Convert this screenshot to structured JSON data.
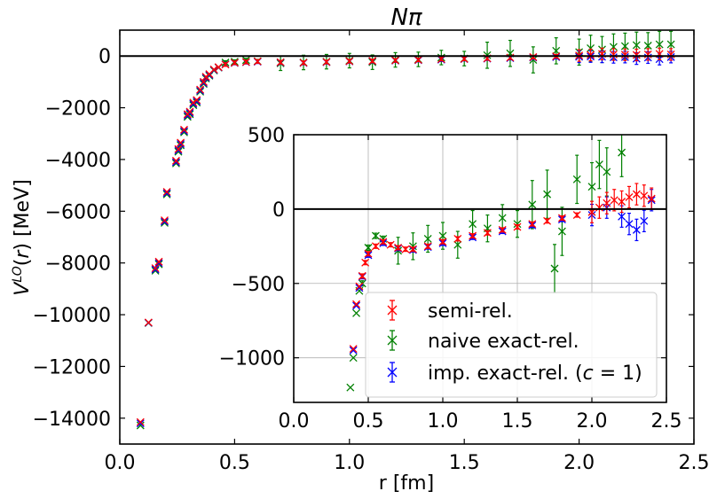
{
  "chart_data": [
    {
      "id": "main",
      "type": "scatter",
      "title": "Nπ",
      "xlabel": "r [fm]",
      "ylabel": "V^LO(r) [MeV]",
      "xlim": [
        0.0,
        2.5
      ],
      "ylim": [
        -15000,
        1000
      ],
      "xticks": [
        0.0,
        0.5,
        1.0,
        1.5,
        2.0,
        2.5
      ],
      "xtick_labels": [
        "0.0",
        "0.5",
        "1.0",
        "1.5",
        "2.0",
        "2.5"
      ],
      "yticks": [
        0,
        -2000,
        -4000,
        -6000,
        -8000,
        -10000,
        -12000,
        -14000
      ],
      "ytick_labels": [
        "0",
        "−2000",
        "−4000",
        "−6000",
        "−8000",
        "−10000",
        "−12000",
        "−14000"
      ],
      "grid": false,
      "zero_line": true,
      "series": [
        {
          "name": "semi-rel.",
          "color": "#ff0000",
          "marker": "x",
          "points": [
            [
              0.09,
              -14150
            ],
            [
              0.125,
              -10300
            ],
            [
              0.155,
              -8200
            ],
            [
              0.17,
              -7950
            ],
            [
              0.195,
              -6350
            ],
            [
              0.205,
              -5250
            ],
            [
              0.245,
              -4050
            ],
            [
              0.255,
              -3600
            ],
            [
              0.265,
              -3350
            ],
            [
              0.28,
              -2850
            ],
            [
              0.295,
              -2250
            ],
            [
              0.305,
              -2150
            ],
            [
              0.32,
              -1800
            ],
            [
              0.335,
              -1700
            ],
            [
              0.35,
              -1300
            ],
            [
              0.365,
              -1000
            ],
            [
              0.375,
              -800
            ],
            [
              0.39,
              -700
            ],
            [
              0.41,
              -520
            ],
            [
              0.43,
              -430
            ],
            [
              0.46,
              -330
            ],
            [
              0.5,
              -260
            ],
            [
              0.55,
              -230
            ],
            [
              0.6,
              -210
            ],
            [
              0.7,
              -240
            ],
            [
              0.8,
              -260
            ],
            [
              0.9,
              -230
            ],
            [
              1.0,
              -200
            ],
            [
              1.1,
              -190
            ],
            [
              1.2,
              -170
            ],
            [
              1.3,
              -150
            ],
            [
              1.4,
              -120
            ],
            [
              1.5,
              -110
            ],
            [
              1.6,
              -90
            ],
            [
              1.7,
              -60
            ],
            [
              1.8,
              -40
            ],
            [
              1.9,
              -10
            ],
            [
              2.0,
              20
            ],
            [
              2.05,
              40
            ],
            [
              2.1,
              80
            ],
            [
              2.15,
              60
            ],
            [
              2.2,
              50
            ],
            [
              2.25,
              40
            ],
            [
              2.3,
              60
            ],
            [
              2.35,
              80
            ],
            [
              2.4,
              60
            ]
          ]
        },
        {
          "name": "naive exact-rel.",
          "color": "#008000",
          "marker": "x",
          "points": [
            [
              0.09,
              -14280
            ],
            [
              0.125,
              -10320
            ],
            [
              0.155,
              -8300
            ],
            [
              0.17,
              -8050
            ],
            [
              0.195,
              -6450
            ],
            [
              0.205,
              -5350
            ],
            [
              0.245,
              -4150
            ],
            [
              0.255,
              -3700
            ],
            [
              0.265,
              -3450
            ],
            [
              0.28,
              -2950
            ],
            [
              0.295,
              -2350
            ],
            [
              0.305,
              -2250
            ],
            [
              0.32,
              -1900
            ],
            [
              0.335,
              -1800
            ],
            [
              0.35,
              -1380
            ],
            [
              0.365,
              -1080
            ],
            [
              0.375,
              -870
            ],
            [
              0.39,
              -760
            ],
            [
              0.41,
              -560
            ],
            [
              0.43,
              -450
            ],
            [
              0.46,
              -250
            ],
            [
              0.5,
              -220
            ],
            [
              0.55,
              -160
            ],
            [
              0.6,
              -200
            ],
            [
              0.7,
              -280
            ],
            [
              0.8,
              -250
            ],
            [
              0.9,
              -220
            ],
            [
              1.0,
              -180
            ],
            [
              1.1,
              -240
            ],
            [
              1.2,
              -150
            ],
            [
              1.3,
              -130
            ],
            [
              1.4,
              -60
            ],
            [
              1.5,
              -100
            ],
            [
              1.6,
              30
            ],
            [
              1.7,
              100
            ],
            [
              1.8,
              -150
            ],
            [
              1.9,
              200
            ],
            [
              2.0,
              150
            ],
            [
              2.05,
              300
            ],
            [
              2.1,
              250
            ],
            [
              2.15,
              350
            ],
            [
              2.2,
              380
            ],
            [
              2.25,
              420
            ],
            [
              2.3,
              400
            ],
            [
              2.35,
              450
            ],
            [
              2.4,
              450
            ]
          ]
        },
        {
          "name": "imp. exact-rel. (c = 1)",
          "color": "#0000ff",
          "marker": "x",
          "points": [
            [
              0.09,
              -14200
            ],
            [
              0.125,
              -10310
            ],
            [
              0.155,
              -8250
            ],
            [
              0.17,
              -8000
            ],
            [
              0.195,
              -6400
            ],
            [
              0.205,
              -5300
            ],
            [
              0.245,
              -4100
            ],
            [
              0.255,
              -3650
            ],
            [
              0.265,
              -3400
            ],
            [
              0.28,
              -2900
            ],
            [
              0.295,
              -2300
            ],
            [
              0.305,
              -2200
            ],
            [
              0.32,
              -1850
            ],
            [
              0.335,
              -1750
            ],
            [
              0.35,
              -1340
            ],
            [
              0.365,
              -1040
            ],
            [
              0.375,
              -830
            ],
            [
              0.39,
              -730
            ],
            [
              0.41,
              -540
            ],
            [
              0.43,
              -440
            ],
            [
              0.46,
              -320
            ],
            [
              0.5,
              -270
            ],
            [
              0.55,
              -240
            ],
            [
              0.6,
              -220
            ],
            [
              0.7,
              -250
            ],
            [
              0.8,
              -270
            ],
            [
              0.9,
              -240
            ],
            [
              1.0,
              -210
            ],
            [
              1.1,
              -200
            ],
            [
              1.2,
              -180
            ],
            [
              1.3,
              -160
            ],
            [
              1.4,
              -140
            ],
            [
              1.5,
              -120
            ],
            [
              1.6,
              -100
            ],
            [
              1.7,
              -80
            ],
            [
              1.8,
              -60
            ],
            [
              1.9,
              -40
            ],
            [
              2.0,
              -30
            ],
            [
              2.05,
              -20
            ],
            [
              2.1,
              -30
            ],
            [
              2.15,
              -50
            ],
            [
              2.2,
              -40
            ],
            [
              2.25,
              -100
            ],
            [
              2.3,
              -60
            ],
            [
              2.35,
              -120
            ],
            [
              2.4,
              -40
            ]
          ]
        }
      ]
    },
    {
      "id": "inset",
      "type": "scatter",
      "xlim": [
        0.0,
        2.5
      ],
      "ylim": [
        -1300,
        500
      ],
      "xticks": [
        0.0,
        0.5,
        1.0,
        1.5,
        2.0,
        2.5
      ],
      "xtick_labels": [
        "0.0",
        "0.5",
        "1.0",
        "1.5",
        "2.0",
        "2.5"
      ],
      "yticks": [
        500,
        0,
        -500,
        -1000
      ],
      "ytick_labels": [
        "500",
        "0",
        "−500",
        "−1000"
      ],
      "grid": true,
      "zero_line": true,
      "legend_position": "lower-right",
      "legend": [
        {
          "label": "semi-rel.",
          "color": "#ff0000"
        },
        {
          "label": "naive exact-rel.",
          "color": "#008000"
        },
        {
          "label_prefix": "imp. exact-rel. (",
          "label_math": "c",
          "label_suffix": " = 1)",
          "color": "#0000ff"
        }
      ],
      "series": [
        {
          "name": "semi-rel.",
          "color": "#ff0000",
          "marker": "x",
          "points": [
            [
              0.4,
              -940
            ],
            [
              0.42,
              -640
            ],
            [
              0.44,
              -520
            ],
            [
              0.46,
              -450
            ],
            [
              0.48,
              -360
            ],
            [
              0.5,
              -300
            ],
            [
              0.55,
              -250
            ],
            [
              0.6,
              -220
            ],
            [
              0.65,
              -240
            ],
            [
              0.7,
              -260
            ],
            [
              0.75,
              -270
            ],
            [
              0.8,
              -270
            ],
            [
              0.9,
              -250
            ],
            [
              1.0,
              -220
            ],
            [
              1.1,
              -200
            ],
            [
              1.2,
              -180
            ],
            [
              1.3,
              -160
            ],
            [
              1.4,
              -140
            ],
            [
              1.5,
              -120
            ],
            [
              1.6,
              -100
            ],
            [
              1.7,
              -80
            ],
            [
              1.8,
              -60
            ],
            [
              1.9,
              -40
            ],
            [
              2.0,
              -20
            ],
            [
              2.05,
              10
            ],
            [
              2.1,
              40
            ],
            [
              2.15,
              60
            ],
            [
              2.2,
              50
            ],
            [
              2.25,
              80
            ],
            [
              2.3,
              100
            ],
            [
              2.35,
              90
            ],
            [
              2.4,
              70
            ]
          ]
        },
        {
          "name": "naive exact-rel.",
          "color": "#008000",
          "marker": "x",
          "points": [
            [
              0.38,
              -1200
            ],
            [
              0.4,
              -1000
            ],
            [
              0.42,
              -700
            ],
            [
              0.44,
              -550
            ],
            [
              0.46,
              -500
            ],
            [
              0.5,
              -260
            ],
            [
              0.55,
              -180
            ],
            [
              0.6,
              -200
            ],
            [
              0.7,
              -280
            ],
            [
              0.8,
              -250
            ],
            [
              0.9,
              -200
            ],
            [
              1.0,
              -180
            ],
            [
              1.1,
              -240
            ],
            [
              1.2,
              -100
            ],
            [
              1.3,
              -130
            ],
            [
              1.4,
              -60
            ],
            [
              1.5,
              -100
            ],
            [
              1.6,
              30
            ],
            [
              1.7,
              100
            ],
            [
              1.75,
              -400
            ],
            [
              1.8,
              -150
            ],
            [
              1.9,
              200
            ],
            [
              2.0,
              150
            ],
            [
              2.05,
              300
            ],
            [
              2.1,
              250
            ],
            [
              2.2,
              380
            ]
          ]
        },
        {
          "name": "imp. exact-rel. (c = 1)",
          "color": "#0000ff",
          "marker": "x",
          "points": [
            [
              0.4,
              -950
            ],
            [
              0.42,
              -650
            ],
            [
              0.44,
              -530
            ],
            [
              0.46,
              -455
            ],
            [
              0.5,
              -310
            ],
            [
              0.6,
              -230
            ],
            [
              0.7,
              -265
            ],
            [
              0.8,
              -275
            ],
            [
              0.9,
              -255
            ],
            [
              1.0,
              -230
            ],
            [
              1.2,
              -190
            ],
            [
              1.4,
              -150
            ],
            [
              1.6,
              -110
            ],
            [
              1.8,
              -70
            ],
            [
              2.0,
              -40
            ],
            [
              2.1,
              10
            ],
            [
              2.2,
              -50
            ],
            [
              2.25,
              -100
            ],
            [
              2.3,
              -140
            ],
            [
              2.35,
              -80
            ],
            [
              2.4,
              60
            ]
          ]
        }
      ]
    }
  ]
}
